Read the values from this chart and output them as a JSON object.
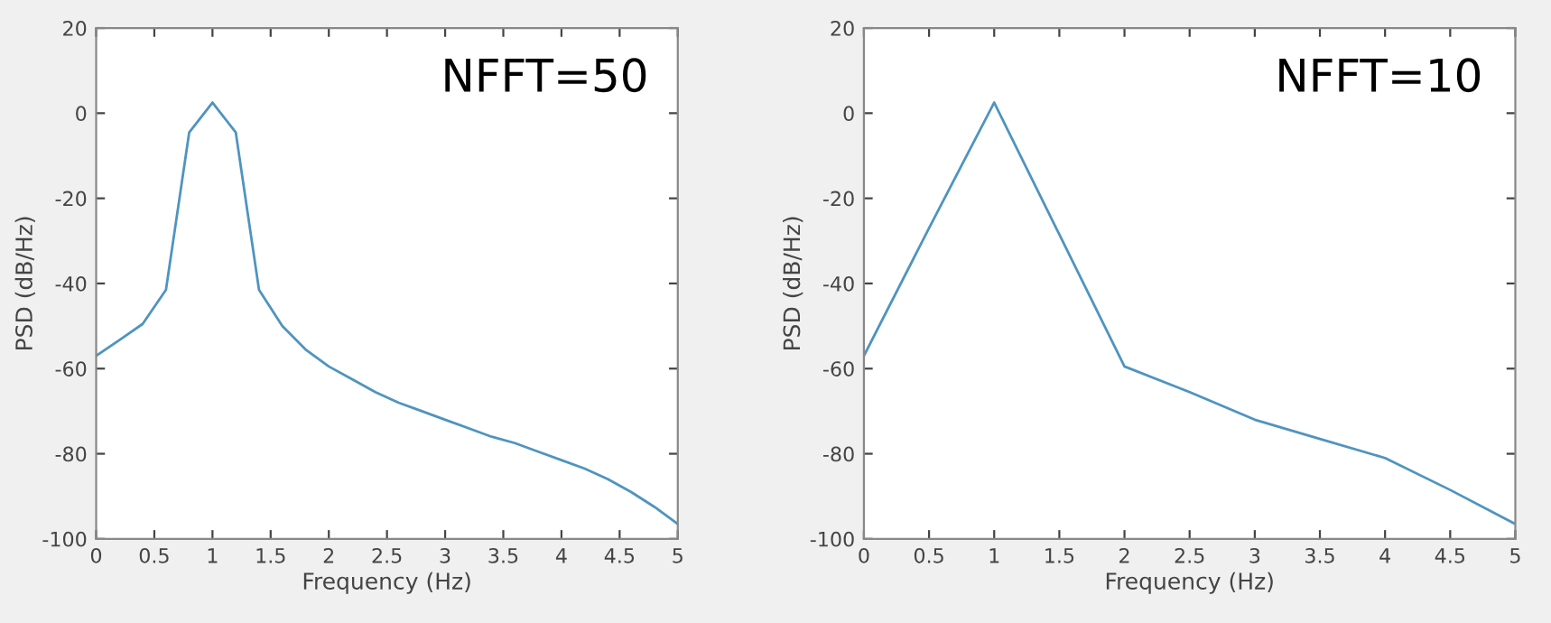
{
  "chart_data": [
    {
      "type": "line",
      "xlabel": "Frequency (Hz)",
      "ylabel": "PSD (dB/Hz)",
      "annotations": [
        "NFFT=50"
      ],
      "series": [
        {
          "color": "#4f94bf",
          "x": [
            0,
            0.2,
            0.4,
            0.6,
            0.8,
            1.0,
            1.2,
            1.4,
            1.6,
            1.8,
            2.0,
            2.2,
            2.4,
            2.6,
            2.8,
            3.0,
            3.2,
            3.4,
            3.6,
            3.8,
            4.0,
            4.2,
            4.4,
            4.6,
            4.8,
            5.0
          ],
          "values": [
            -57,
            -53.3,
            -49.5,
            -41.5,
            -4.5,
            2.5,
            -4.5,
            -41.5,
            -50,
            -55.5,
            -59.5,
            -62.5,
            -65.5,
            -68,
            -70,
            -72,
            -74,
            -76,
            -77.5,
            -79.5,
            -81.5,
            -83.5,
            -86,
            -89,
            -92.5,
            -96.5
          ]
        }
      ],
      "xlim": [
        0,
        5
      ],
      "xticks": [
        0,
        0.5,
        1,
        1.5,
        2,
        2.5,
        3,
        3.5,
        4,
        4.5,
        5
      ],
      "ylim": [
        -100,
        20
      ],
      "yticks": [
        -100,
        -80,
        -60,
        -40,
        -20,
        0,
        20
      ],
      "grid": false,
      "marker": "none",
      "line_style": "solid"
    },
    {
      "type": "line",
      "xlabel": "Frequency (Hz)",
      "ylabel": "PSD (dB/Hz)",
      "annotations": [
        "NFFT=10"
      ],
      "series": [
        {
          "color": "#4f94bf",
          "x": [
            0,
            0.5,
            1.0,
            1.5,
            2.0,
            2.5,
            3.0,
            3.5,
            4.0,
            4.5,
            5.0
          ],
          "values": [
            -57,
            -27,
            2.5,
            -28.5,
            -59.5,
            -65.5,
            -72,
            -76.5,
            -81,
            -88.5,
            -96.5
          ]
        }
      ],
      "xlim": [
        0,
        5
      ],
      "xticks": [
        0,
        0.5,
        1,
        1.5,
        2,
        2.5,
        3,
        3.5,
        4,
        4.5,
        5
      ],
      "ylim": [
        -100,
        20
      ],
      "yticks": [
        -100,
        -80,
        -60,
        -40,
        -20,
        0,
        20
      ],
      "grid": false,
      "marker": "none",
      "line_style": "solid"
    }
  ]
}
